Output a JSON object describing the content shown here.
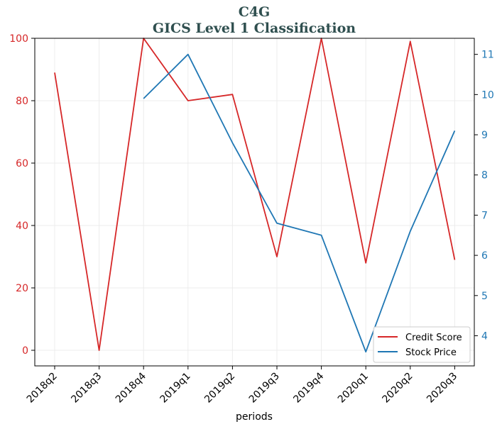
{
  "chart_data": {
    "type": "line",
    "title": "C4G",
    "subtitle": "GICS Level 1 Classification",
    "xlabel": "periods",
    "ylabel": "",
    "y2label": "",
    "categories": [
      "2018q2",
      "2018q3",
      "2018q4",
      "2019q1",
      "2019q2",
      "2019q3",
      "2019q4",
      "2020q1",
      "2020q2",
      "2020q3"
    ],
    "ylim": [
      -5,
      100
    ],
    "yticks": [
      0,
      20,
      40,
      60,
      80,
      100
    ],
    "y2lim": [
      3.25,
      11.4
    ],
    "y2ticks": [
      4,
      5,
      6,
      7,
      8,
      9,
      10,
      11
    ],
    "grid": true,
    "legend_position": "lower-right",
    "series": [
      {
        "name": "Credit Score",
        "axis": "left",
        "color": "#d62728",
        "values": [
          89,
          0,
          100,
          80,
          82,
          30,
          100,
          28,
          99,
          29
        ]
      },
      {
        "name": "Stock Price",
        "axis": "right",
        "color": "#1f77b4",
        "values": [
          null,
          null,
          9.9,
          11.0,
          8.8,
          6.8,
          6.5,
          3.6,
          6.6,
          9.1
        ]
      }
    ],
    "colors": {
      "left_axis": "#d62728",
      "right_axis": "#1f77b4",
      "title": "#2f4f4f"
    }
  }
}
